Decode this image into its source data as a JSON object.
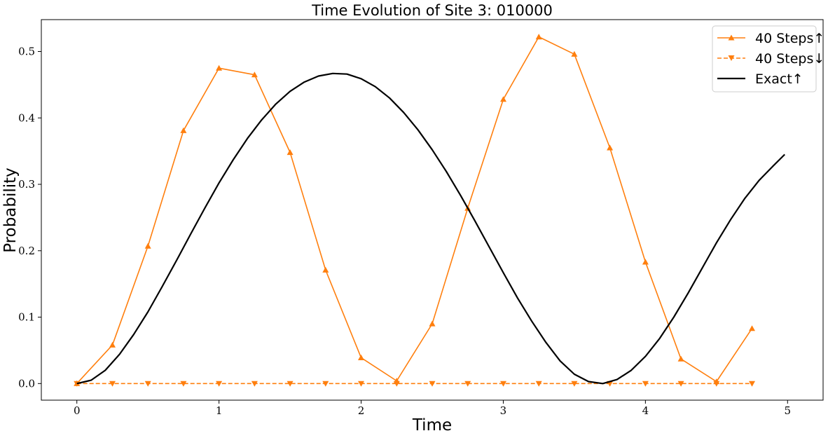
{
  "chart_data": {
    "type": "line",
    "title": "Time Evolution of Site 3: 010000",
    "xlabel": "Time",
    "ylabel": "Probability",
    "xlim": [
      -0.25,
      5.25
    ],
    "ylim": [
      -0.025,
      0.548
    ],
    "xticks": [
      0,
      1,
      2,
      3,
      4,
      5
    ],
    "xtick_labels": [
      "0",
      "1",
      "2",
      "3",
      "4",
      "5"
    ],
    "yticks": [
      0.0,
      0.1,
      0.2,
      0.3,
      0.4,
      0.5
    ],
    "ytick_labels": [
      "0.0",
      "0.1",
      "0.2",
      "0.3",
      "0.4",
      "0.5"
    ],
    "grid": false,
    "legend_position": "top-right",
    "series": [
      {
        "name": "40 Steps↑",
        "color": "#ff7f0e",
        "line_style": "solid",
        "marker": "triangle-up",
        "x": [
          0,
          0.25,
          0.5,
          0.75,
          1.0,
          1.25,
          1.5,
          1.75,
          2.0,
          2.25,
          2.5,
          2.75,
          3.0,
          3.25,
          3.5,
          3.75,
          4.0,
          4.25,
          4.5,
          4.75
        ],
        "y": [
          0.0,
          0.058,
          0.207,
          0.381,
          0.475,
          0.465,
          0.348,
          0.171,
          0.039,
          0.004,
          0.09,
          0.264,
          0.428,
          0.522,
          0.496,
          0.355,
          0.183,
          0.037,
          0.003,
          0.083
        ]
      },
      {
        "name": "40 Steps↓",
        "color": "#ff7f0e",
        "line_style": "dashed",
        "marker": "triangle-down",
        "x": [
          0,
          0.25,
          0.5,
          0.75,
          1.0,
          1.25,
          1.5,
          1.75,
          2.0,
          2.25,
          2.5,
          2.75,
          3.0,
          3.25,
          3.5,
          3.75,
          4.0,
          4.25,
          4.5,
          4.75
        ],
        "y": [
          0,
          0,
          0,
          0,
          0,
          0,
          0,
          0,
          0,
          0,
          0,
          0,
          0,
          0,
          0,
          0,
          0,
          0,
          0,
          0
        ]
      },
      {
        "name": "Exact↑",
        "color": "#000000",
        "line_style": "solid",
        "marker": "none",
        "x": [
          0,
          0.1,
          0.2,
          0.3,
          0.4,
          0.5,
          0.6,
          0.7,
          0.8,
          0.9,
          1.0,
          1.1,
          1.2,
          1.3,
          1.4,
          1.5,
          1.6,
          1.7,
          1.8,
          1.9,
          2.0,
          2.1,
          2.2,
          2.3,
          2.4,
          2.5,
          2.6,
          2.7,
          2.8,
          2.9,
          3.0,
          3.1,
          3.2,
          3.3,
          3.4,
          3.5,
          3.6,
          3.7,
          3.8,
          3.9,
          4.0,
          4.1,
          4.2,
          4.3,
          4.4,
          4.5,
          4.6,
          4.7,
          4.8,
          4.9,
          4.98
        ],
        "y": [
          0.0,
          0.005,
          0.02,
          0.044,
          0.074,
          0.108,
          0.146,
          0.185,
          0.225,
          0.264,
          0.302,
          0.337,
          0.369,
          0.397,
          0.421,
          0.44,
          0.454,
          0.463,
          0.467,
          0.466,
          0.459,
          0.447,
          0.43,
          0.408,
          0.382,
          0.352,
          0.319,
          0.283,
          0.245,
          0.206,
          0.167,
          0.129,
          0.094,
          0.062,
          0.034,
          0.014,
          0.003,
          0.0,
          0.006,
          0.02,
          0.041,
          0.068,
          0.1,
          0.136,
          0.174,
          0.212,
          0.247,
          0.279,
          0.306,
          0.328,
          0.345
        ]
      }
    ]
  }
}
